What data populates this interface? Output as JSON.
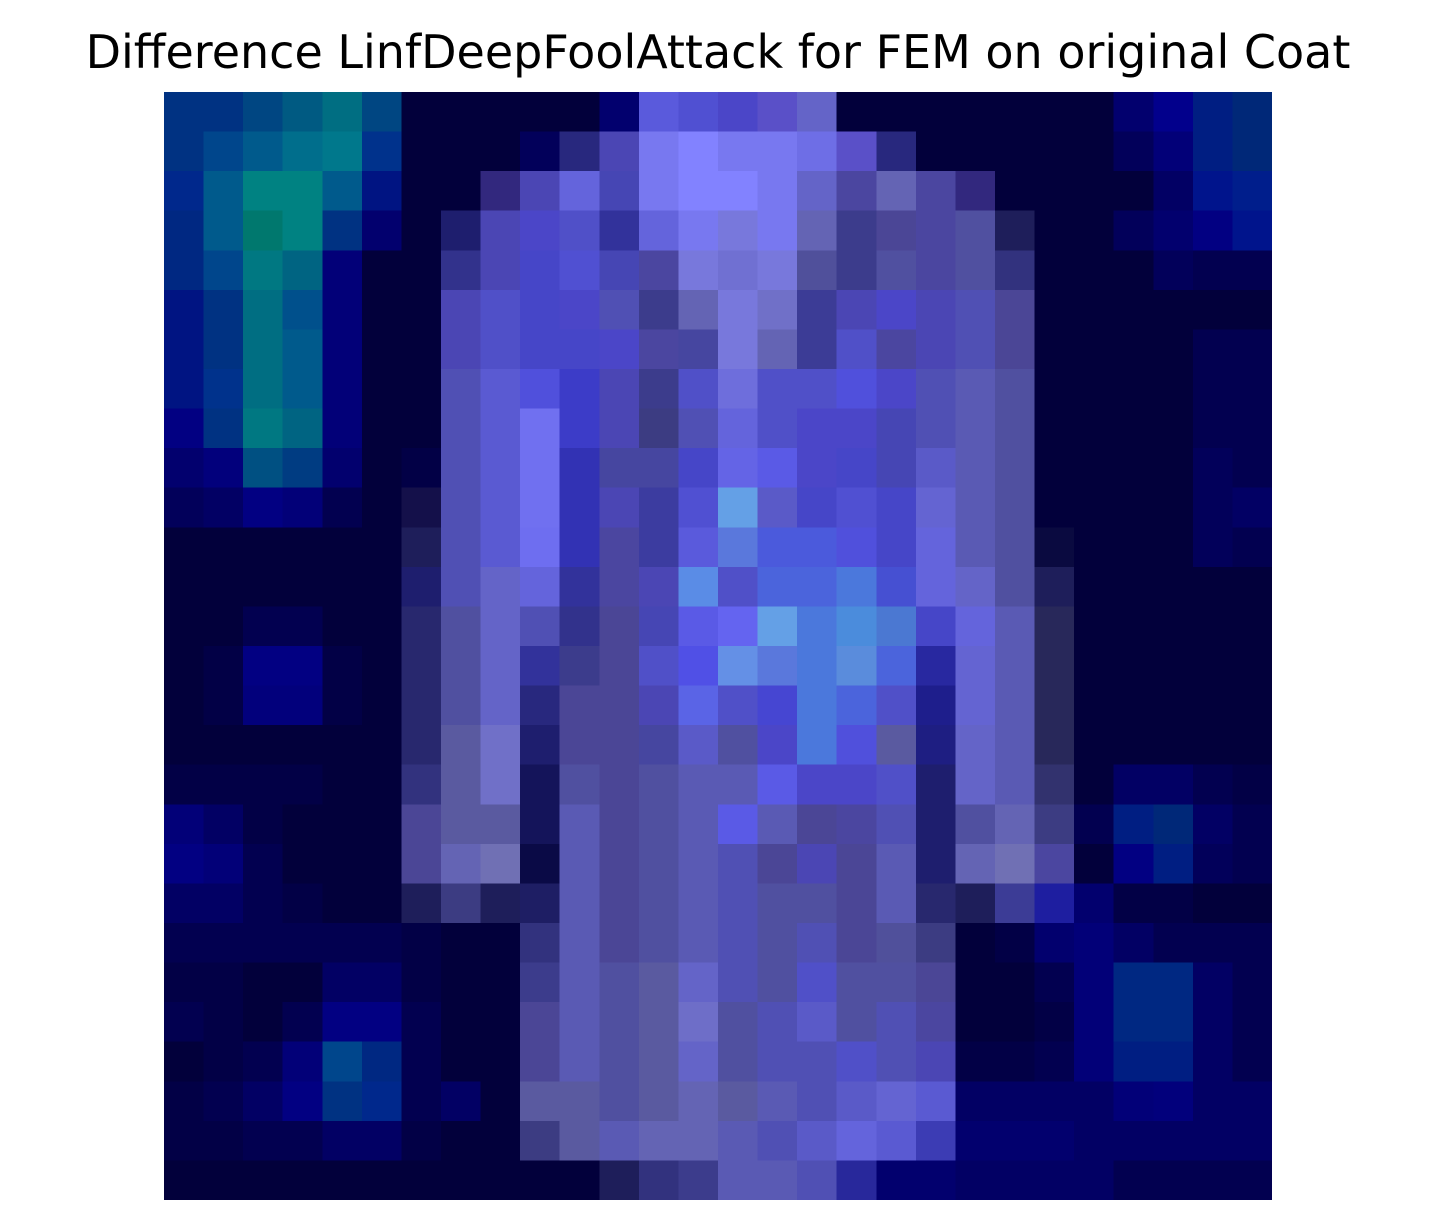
{
  "chart_data": {
    "type": "heatmap",
    "title": "Difference LinfDeepFoolAttack for FEM on original Coat",
    "xlabel": "",
    "ylabel": "",
    "axes_visible": false,
    "grid": false,
    "rows": 28,
    "cols": 28,
    "background_color": "#02003b",
    "overlay_style": "grayscale image tinted blue with saliency overlay",
    "value_encoding": "each cell is an RGB hex color of the rendered pixel",
    "pixels": [
      [
        "#003282",
        "#003282",
        "#004682",
        "#005a82",
        "#006e82",
        "#004682",
        "#02003b",
        "#02003b",
        "#02003b",
        "#02003b",
        "#02003b",
        "#02006e",
        "#5a5adc",
        "#5050d2",
        "#4b46c8",
        "#5a50c8",
        "#6464c8",
        "#02003b",
        "#02003b",
        "#02003b",
        "#02003b",
        "#02003b",
        "#02003b",
        "#02003b",
        "#02006e",
        "#02008c",
        "#001e82",
        "#002878"
      ],
      [
        "#003282",
        "#00468c",
        "#005a8c",
        "#006e8c",
        "#00788c",
        "#00328c",
        "#02003b",
        "#02003b",
        "#02003b",
        "#02005a",
        "#28287e",
        "#4b46b4",
        "#7878f0",
        "#8282ff",
        "#7878f0",
        "#7878f0",
        "#6e6ee6",
        "#5a50c8",
        "#28287e",
        "#02003b",
        "#02003b",
        "#02003b",
        "#02003b",
        "#02003b",
        "#02005a",
        "#020078",
        "#001e82",
        "#002878"
      ],
      [
        "#00288c",
        "#005a8c",
        "#008282",
        "#008282",
        "#005a8c",
        "#001482",
        "#02003b",
        "#02003b",
        "#32287e",
        "#4b46b4",
        "#6464dc",
        "#4646b4",
        "#7878f0",
        "#8282ff",
        "#8282ff",
        "#7878f0",
        "#6464c8",
        "#4b46a0",
        "#6464b4",
        "#4b46a0",
        "#32287e",
        "#02003b",
        "#02003b",
        "#02003b",
        "#02003b",
        "#020064",
        "#00148c",
        "#001e8c"
      ],
      [
        "#002882",
        "#005a8c",
        "#00786e",
        "#008282",
        "#003282",
        "#02006e",
        "#02003b",
        "#1e1e6e",
        "#4b46b4",
        "#4b46c8",
        "#5050c8",
        "#32329b",
        "#6464dc",
        "#7878f0",
        "#7878dc",
        "#7878f0",
        "#6464b4",
        "#3c3c8c",
        "#4b4696",
        "#4b46a0",
        "#5050a0",
        "#1e1e5a",
        "#02003b",
        "#02003b",
        "#02005a",
        "#02006e",
        "#020082",
        "#00148c"
      ],
      [
        "#002882",
        "#00468c",
        "#007882",
        "#006482",
        "#020078",
        "#02003b",
        "#02003b",
        "#32328c",
        "#4b46b4",
        "#4646c8",
        "#5050d2",
        "#4646b4",
        "#4b46a0",
        "#7878dc",
        "#7070d2",
        "#7878dc",
        "#50509b",
        "#3c3c8c",
        "#5050a0",
        "#4b46a0",
        "#5050a0",
        "#32327e",
        "#02003b",
        "#02003b",
        "#02003b",
        "#02005a",
        "#020050",
        "#020050"
      ],
      [
        "#001482",
        "#003282",
        "#006e82",
        "#00508c",
        "#020078",
        "#02003b",
        "#02003b",
        "#4b46b4",
        "#5050c8",
        "#4646c8",
        "#4b46c8",
        "#5050b4",
        "#3c3c8c",
        "#6464b4",
        "#7878dc",
        "#7070c8",
        "#3c3c96",
        "#4b46b4",
        "#4b46c8",
        "#4b46b4",
        "#5050b4",
        "#4b4696",
        "#02003b",
        "#02003b",
        "#02003b",
        "#02003b",
        "#02003b",
        "#02003b"
      ],
      [
        "#001482",
        "#003282",
        "#006e82",
        "#005a8c",
        "#020078",
        "#02003b",
        "#02003b",
        "#4b46b4",
        "#5050c8",
        "#4646c8",
        "#4646c8",
        "#4b46c8",
        "#4b46a0",
        "#4646a0",
        "#7878dc",
        "#6464b4",
        "#3c3c96",
        "#5050c8",
        "#4b46a0",
        "#4b46b4",
        "#5050b4",
        "#4b4696",
        "#02003b",
        "#02003b",
        "#02003b",
        "#02003b",
        "#020050",
        "#020050"
      ],
      [
        "#001482",
        "#00328c",
        "#006e82",
        "#005a8c",
        "#020078",
        "#02003b",
        "#02003b",
        "#5050b4",
        "#5a5ad2",
        "#5050dc",
        "#3c3cc8",
        "#4b46b4",
        "#3c3c8c",
        "#5050c8",
        "#6e6edc",
        "#5050c8",
        "#5050c8",
        "#5050dc",
        "#4b46c8",
        "#5050b4",
        "#5a5ab4",
        "#5050a0",
        "#02003b",
        "#02003b",
        "#02003b",
        "#02003b",
        "#020050",
        "#020050"
      ],
      [
        "#020082",
        "#003282",
        "#007882",
        "#006482",
        "#020078",
        "#02003b",
        "#02003b",
        "#5050b4",
        "#5a5ad2",
        "#7070f0",
        "#3c3cc8",
        "#4b46b4",
        "#3c3c82",
        "#5050b4",
        "#6464dc",
        "#5050c8",
        "#4b46c8",
        "#4b46c8",
        "#4646b4",
        "#5050b4",
        "#5a5ab4",
        "#5050a0",
        "#02003b",
        "#02003b",
        "#02003b",
        "#02003b",
        "#020050",
        "#020050"
      ],
      [
        "#02006e",
        "#02007c",
        "#005082",
        "#003c82",
        "#02006e",
        "#02003b",
        "#020046",
        "#5050b4",
        "#5a5ad2",
        "#7070f0",
        "#3232b4",
        "#4646a0",
        "#4646a0",
        "#4646c8",
        "#6464e6",
        "#5a5ae6",
        "#4b46c8",
        "#4646c8",
        "#4646b4",
        "#5a5ac8",
        "#5a5ab4",
        "#5050a0",
        "#02003b",
        "#02003b",
        "#02003b",
        "#02003b",
        "#02005a",
        "#020050"
      ],
      [
        "#02005a",
        "#020064",
        "#020082",
        "#020078",
        "#020050",
        "#02003b",
        "#14104a",
        "#5050b4",
        "#5a5ad2",
        "#7070f0",
        "#3232b4",
        "#4b46b4",
        "#3c3ca0",
        "#5050d2",
        "#64a0e6",
        "#5a5ac8",
        "#4646c8",
        "#5050d2",
        "#4646c8",
        "#6464d2",
        "#5a5ab4",
        "#5050a0",
        "#02003b",
        "#02003b",
        "#02003b",
        "#02003b",
        "#02005a",
        "#020064"
      ],
      [
        "#02003b",
        "#02003b",
        "#02003b",
        "#02003b",
        "#02003b",
        "#02003b",
        "#1e1e5a",
        "#5050b4",
        "#5a5ad2",
        "#6e6ef0",
        "#3232b4",
        "#4b46a0",
        "#3c3ca0",
        "#5a5adc",
        "#5a78dc",
        "#4b5adc",
        "#4b5adc",
        "#5050dc",
        "#4646c8",
        "#6464dc",
        "#5a5ab4",
        "#5050a0",
        "#0a0a40",
        "#02003b",
        "#02003b",
        "#02003b",
        "#02005a",
        "#020050"
      ],
      [
        "#02003b",
        "#02003b",
        "#02003b",
        "#02003b",
        "#02003b",
        "#02003b",
        "#1e1e6e",
        "#5050b4",
        "#6464c8",
        "#6464dc",
        "#32329b",
        "#4b46a0",
        "#4b46b4",
        "#5a8ce6",
        "#5050c8",
        "#4b64dc",
        "#4b64dc",
        "#4b78dc",
        "#4650d2",
        "#6464dc",
        "#6464c8",
        "#5050a0",
        "#1e1e5a",
        "#02003b",
        "#02003b",
        "#02003b",
        "#02003b",
        "#02003b"
      ],
      [
        "#02003b",
        "#02003b",
        "#020050",
        "#020050",
        "#02003b",
        "#02003b",
        "#28286e",
        "#5050a0",
        "#6464c8",
        "#5050b4",
        "#32328c",
        "#4b4696",
        "#4646b4",
        "#5a5ae6",
        "#6464f0",
        "#64a0e6",
        "#4b78dc",
        "#4b8cdc",
        "#4b78d2",
        "#4646c8",
        "#6464dc",
        "#5a5ab4",
        "#28285a",
        "#02003b",
        "#02003b",
        "#02003b",
        "#02003b",
        "#02003b"
      ],
      [
        "#02003b",
        "#020046",
        "#020082",
        "#020082",
        "#020046",
        "#02003b",
        "#28286e",
        "#5050a0",
        "#6464c8",
        "#32329b",
        "#3c3c8c",
        "#4b4696",
        "#5050c8",
        "#5050e6",
        "#6490e6",
        "#5a78dc",
        "#4b78dc",
        "#5a8cdc",
        "#4b64dc",
        "#2828a0",
        "#6464d2",
        "#5a5ab4",
        "#28285a",
        "#02003b",
        "#02003b",
        "#02003b",
        "#02003b",
        "#02003b"
      ],
      [
        "#02003b",
        "#020046",
        "#02007c",
        "#02007c",
        "#020046",
        "#02003b",
        "#28286e",
        "#5050a0",
        "#6464c8",
        "#28287e",
        "#4b4696",
        "#4b4696",
        "#4b46b4",
        "#5a64e6",
        "#5050c8",
        "#4646d2",
        "#4b78dc",
        "#4b64dc",
        "#5050c8",
        "#1e1e8c",
        "#6464d2",
        "#5a5ab4",
        "#28285a",
        "#02003b",
        "#02003b",
        "#02003b",
        "#02003b",
        "#02003b"
      ],
      [
        "#02003b",
        "#02003b",
        "#02003b",
        "#02003b",
        "#02003b",
        "#02003b",
        "#28286e",
        "#5a5aa0",
        "#7070c8",
        "#1e1e6e",
        "#4b4696",
        "#4b4696",
        "#4646a0",
        "#5a5ac8",
        "#5050a0",
        "#4b46c8",
        "#4b78dc",
        "#5050dc",
        "#5a5aa0",
        "#1e1e82",
        "#6464c8",
        "#5a5ab4",
        "#28285a",
        "#02003b",
        "#02003b",
        "#02003b",
        "#02003b",
        "#02003b"
      ],
      [
        "#020046",
        "#020046",
        "#020046",
        "#020046",
        "#02003b",
        "#02003b",
        "#32327e",
        "#5a5aa0",
        "#7070c8",
        "#14145a",
        "#5050a0",
        "#4b4696",
        "#5050a0",
        "#5a5ab4",
        "#5a5ab4",
        "#5a5ae6",
        "#4b46c8",
        "#4b46c8",
        "#5050c8",
        "#1e1e6e",
        "#6464c8",
        "#5a5ab4",
        "#32326e",
        "#02003b",
        "#020064",
        "#020064",
        "#020050",
        "#020046"
      ],
      [
        "#020078",
        "#020064",
        "#020046",
        "#02003b",
        "#02003b",
        "#02003b",
        "#4b4696",
        "#5a5aa0",
        "#5a5aa0",
        "#14145a",
        "#5a5ab4",
        "#4b4696",
        "#5050a0",
        "#5a5ab4",
        "#5a5ae6",
        "#5a5ab4",
        "#4b4696",
        "#4b46a0",
        "#5050b4",
        "#1e1e6e",
        "#5050a0",
        "#6464b4",
        "#3c3c82",
        "#020050",
        "#001e82",
        "#002878",
        "#020064",
        "#020050"
      ],
      [
        "#020082",
        "#020078",
        "#020050",
        "#02003b",
        "#02003b",
        "#02003b",
        "#4b4696",
        "#6464b4",
        "#7070b4",
        "#0a0a46",
        "#5a5ab4",
        "#4b4696",
        "#5050a0",
        "#5a5ab4",
        "#5050b4",
        "#4b4696",
        "#4b46b4",
        "#4b4696",
        "#5a5ab4",
        "#1e1e6e",
        "#6464b4",
        "#7070b4",
        "#4b46a0",
        "#02003b",
        "#020082",
        "#001e82",
        "#02005a",
        "#020050"
      ],
      [
        "#020064",
        "#020064",
        "#020050",
        "#020046",
        "#02003b",
        "#02003b",
        "#1e1e5a",
        "#3c3c82",
        "#1e1e5a",
        "#1e1e64",
        "#5a5ab4",
        "#4b4696",
        "#5050a0",
        "#5a5ab4",
        "#5050b4",
        "#5050a0",
        "#5050a0",
        "#4b4696",
        "#5a5ab4",
        "#28286e",
        "#1e1e5a",
        "#3c3c96",
        "#1e1ea0",
        "#02006e",
        "#020046",
        "#020046",
        "#02003b",
        "#02003b"
      ],
      [
        "#020050",
        "#020050",
        "#020050",
        "#020050",
        "#020050",
        "#020050",
        "#020046",
        "#02003b",
        "#02003b",
        "#32327e",
        "#5a5ab4",
        "#4b4696",
        "#5050a0",
        "#5a5ab4",
        "#5050b4",
        "#5050a0",
        "#5050b4",
        "#4b4696",
        "#50509b",
        "#3c3c82",
        "#02003b",
        "#020046",
        "#02006e",
        "#020078",
        "#020064",
        "#020050",
        "#020050",
        "#020050"
      ],
      [
        "#020046",
        "#020046",
        "#02003b",
        "#02003b",
        "#020064",
        "#020064",
        "#020046",
        "#02003b",
        "#02003b",
        "#3c3c8c",
        "#5a5ab4",
        "#5050a0",
        "#5a5aa0",
        "#6464c8",
        "#5050b4",
        "#5050a0",
        "#5050c8",
        "#5050a0",
        "#5050a0",
        "#4b4696",
        "#02003b",
        "#02003b",
        "#020050",
        "#020078",
        "#002882",
        "#002882",
        "#020064",
        "#020050"
      ],
      [
        "#020050",
        "#020046",
        "#02003b",
        "#020050",
        "#020082",
        "#020082",
        "#020050",
        "#02003b",
        "#02003b",
        "#4b4696",
        "#5a5ab4",
        "#5050a0",
        "#5a5aa0",
        "#6e6ec8",
        "#5050a0",
        "#5050b4",
        "#5a5ac8",
        "#5050a0",
        "#5050b4",
        "#4b46a0",
        "#02003b",
        "#02003b",
        "#020046",
        "#020078",
        "#002882",
        "#002882",
        "#020064",
        "#020050"
      ],
      [
        "#02003b",
        "#020046",
        "#020050",
        "#020078",
        "#00468c",
        "#002882",
        "#020050",
        "#02003b",
        "#02003b",
        "#4b4696",
        "#5a5ab4",
        "#5050a0",
        "#5a5aa0",
        "#6464c8",
        "#5050a0",
        "#5050b4",
        "#5050b4",
        "#5050c8",
        "#5050b4",
        "#4b46b4",
        "#020046",
        "#020046",
        "#020050",
        "#020078",
        "#001e82",
        "#001e82",
        "#020064",
        "#020050"
      ],
      [
        "#020046",
        "#020050",
        "#020064",
        "#020082",
        "#003282",
        "#00288c",
        "#020050",
        "#020064",
        "#02003b",
        "#5a5aa0",
        "#5a5aa0",
        "#5050a0",
        "#5a5aa0",
        "#6464b4",
        "#5a5aa0",
        "#5a5ab4",
        "#5050b4",
        "#5a5ac8",
        "#6464d2",
        "#5a5ad2",
        "#020064",
        "#020064",
        "#020064",
        "#020064",
        "#020078",
        "#02007c",
        "#020064",
        "#020064"
      ],
      [
        "#020046",
        "#020046",
        "#020050",
        "#020050",
        "#020064",
        "#020064",
        "#020046",
        "#02003b",
        "#02003b",
        "#3c3c82",
        "#5a5aa0",
        "#5a5ab4",
        "#6464b4",
        "#6464b4",
        "#5a5ab4",
        "#5050b4",
        "#5a5ac8",
        "#6464dc",
        "#5a5ad2",
        "#3c3cb4",
        "#02006e",
        "#02006e",
        "#02006e",
        "#020064",
        "#020064",
        "#020064",
        "#020064",
        "#020064"
      ],
      [
        "#02003b",
        "#02003b",
        "#02003b",
        "#02003b",
        "#02003b",
        "#02003b",
        "#02003b",
        "#02003b",
        "#02003b",
        "#02003b",
        "#02003b",
        "#1e1e5a",
        "#32327e",
        "#3c3c8c",
        "#5a5ab4",
        "#5a5ab4",
        "#5050b4",
        "#28289b",
        "#02006e",
        "#02006e",
        "#020064",
        "#020064",
        "#020064",
        "#020064",
        "#020050",
        "#020050",
        "#020050",
        "#020050"
      ]
    ]
  }
}
